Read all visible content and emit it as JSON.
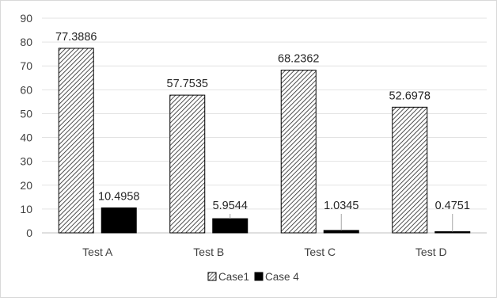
{
  "chart_data": {
    "type": "bar",
    "title": "",
    "xlabel": "",
    "ylabel": "",
    "categories": [
      "Test A",
      "Test B",
      "Test C",
      "Test D"
    ],
    "series": [
      {
        "name": "Case1",
        "values": [
          77.3886,
          57.7535,
          68.2362,
          52.6978
        ],
        "labels": [
          "77.3886",
          "57.7535",
          "68.2362",
          "52.6978"
        ],
        "fill": "hatched",
        "color": "#000000"
      },
      {
        "name": "Case 4",
        "values": [
          10.4958,
          5.9544,
          1.0345,
          0.4751
        ],
        "labels": [
          "10.4958",
          "5.9544",
          "1.0345",
          "0.4751"
        ],
        "fill": "solid",
        "color": "#000000"
      }
    ],
    "ylim": [
      0,
      90
    ],
    "yticks": [
      "0",
      "10",
      "20",
      "30",
      "40",
      "50",
      "60",
      "70",
      "80",
      "90"
    ],
    "grid": true,
    "legend": "bottom"
  }
}
